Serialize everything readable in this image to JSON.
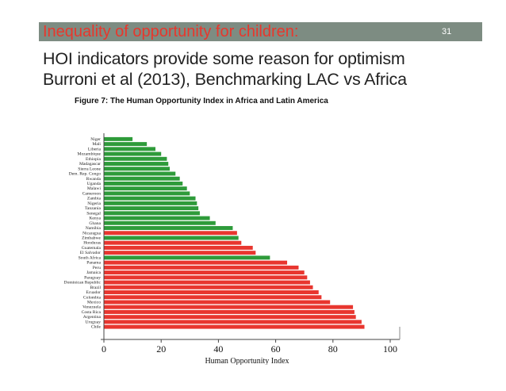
{
  "slide": {
    "title": "Inequality of opportunity for children:",
    "slide_number": "31",
    "subtitle_line1": "HOI  indicators provide some reason for optimism",
    "subtitle_line2": "Burroni et al (2013), Benchmarking LAC vs  Africa",
    "figure_caption": "Figure 7: The Human Opportunity Index in Africa and Latin America"
  },
  "colors": {
    "africa": "#2e9b3a",
    "latin_america": "#e8362f",
    "title_bar": "#7d8c82",
    "title_text": "#e8372c"
  },
  "chart_data": {
    "type": "bar",
    "orientation": "horizontal",
    "title": "Figure 7: The Human Opportunity Index in Africa and Latin America",
    "xlabel": "Human Opportunity Index",
    "ylabel": "",
    "xlim": [
      0,
      100
    ],
    "xticks": [
      "0",
      "20",
      "40",
      "60",
      "80",
      "100"
    ],
    "legend": [],
    "categories": [
      "Niger",
      "Mali",
      "Liberia",
      "Mozambique",
      "Ethiopia",
      "Madagascar",
      "Sierra Leone",
      "Dem. Rep. Congo",
      "Rwanda",
      "Uganda",
      "Malawi",
      "Cameroon",
      "Zambia",
      "Nigeria",
      "Tanzania",
      "Senegal",
      "Kenya",
      "Ghana",
      "Namibia",
      "Nicaragua",
      "Zimbabwe",
      "Honduras",
      "Guatemala",
      "El Salvador",
      "South Africa",
      "Panama",
      "Peru",
      "Jamaica",
      "Paraguay",
      "Dominican Republic",
      "Brazil",
      "Ecuador",
      "Colombia",
      "Mexico",
      "Venezuela",
      "Costa Rica",
      "Argentina",
      "Uruguay",
      "Chile"
    ],
    "values": [
      10,
      15,
      18,
      20,
      22,
      22.5,
      23,
      25,
      26.5,
      27.5,
      29,
      30,
      32,
      32.5,
      33,
      33.5,
      37,
      39,
      45,
      46.5,
      47,
      48,
      52,
      53,
      58,
      64,
      68,
      70,
      71,
      72,
      73,
      75,
      76,
      79,
      87,
      87.5,
      88,
      90,
      91
    ],
    "groups": [
      "africa",
      "africa",
      "africa",
      "africa",
      "africa",
      "africa",
      "africa",
      "africa",
      "africa",
      "africa",
      "africa",
      "africa",
      "africa",
      "africa",
      "africa",
      "africa",
      "africa",
      "africa",
      "africa",
      "latin_america",
      "africa",
      "latin_america",
      "latin_america",
      "latin_america",
      "africa",
      "latin_america",
      "latin_america",
      "latin_america",
      "latin_america",
      "latin_america",
      "latin_america",
      "latin_america",
      "latin_america",
      "latin_america",
      "latin_america",
      "latin_america",
      "latin_america",
      "latin_america",
      "latin_america"
    ]
  }
}
